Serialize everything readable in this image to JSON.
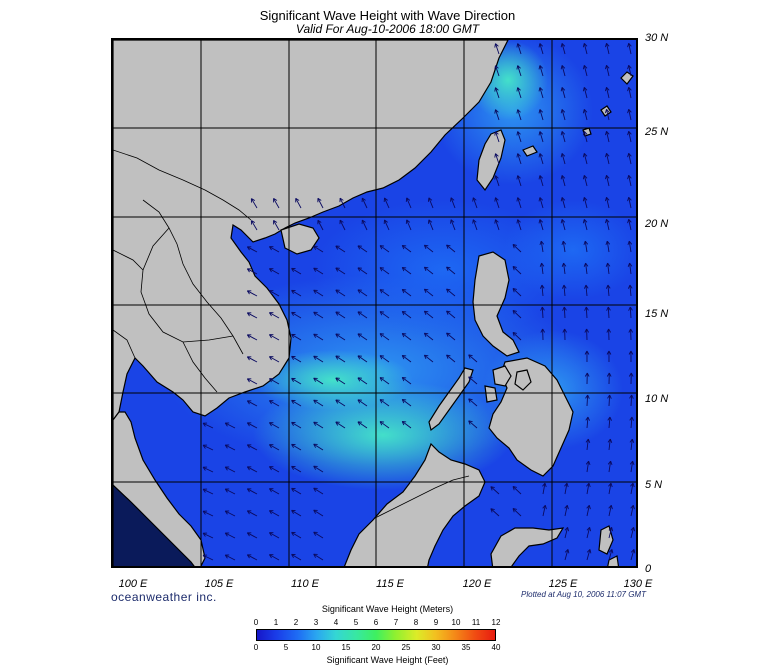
{
  "title": "Significant Wave Height with Wave Direction",
  "subtitle": "Valid For Aug-10-2006 18:00 GMT",
  "lat_labels": [
    "30 N",
    "25 N",
    "20 N",
    "15 N",
    "10 N",
    "5 N",
    "0"
  ],
  "lon_labels": [
    "100 E",
    "105 E",
    "110 E",
    "115 E",
    "120 E",
    "125 E",
    "130 E"
  ],
  "brand": "oceanweather inc.",
  "plotted": "Plotted at Aug 10, 2006 11:07 GMT",
  "legend": {
    "meters_title": "Significant Wave Height (Meters)",
    "meters_ticks": [
      "0",
      "1",
      "2",
      "3",
      "4",
      "5",
      "6",
      "7",
      "8",
      "9",
      "10",
      "11",
      "12"
    ],
    "feet_ticks": [
      "0",
      "5",
      "10",
      "15",
      "20",
      "25",
      "30",
      "35",
      "40"
    ],
    "feet_title": "Significant Wave Height (Feet)"
  },
  "colors": {
    "land": "#c0c0c0",
    "sea_low": "#1a44e6",
    "sea_mid": "#2f9cf2",
    "sea_high": "#45e6c8",
    "arrow": "#0a0a60"
  }
}
